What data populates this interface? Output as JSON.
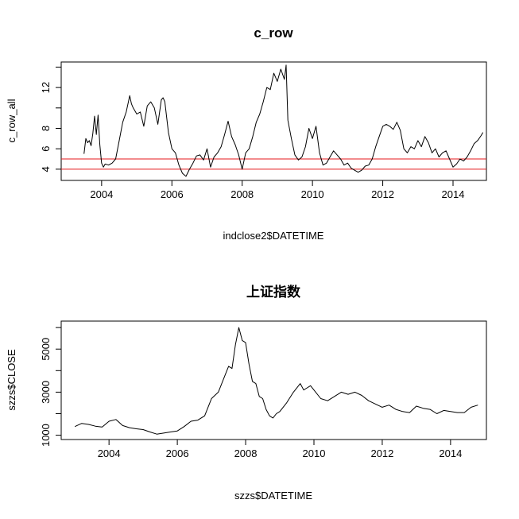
{
  "chart_data": [
    {
      "type": "line",
      "title": "c_row",
      "xlabel": "indclose2$DATETIME",
      "ylabel": "c_row_all",
      "xlim": [
        2002.85,
        2014.95
      ],
      "ylim": [
        2.9,
        14.5
      ],
      "x_ticks": [
        2004,
        2006,
        2008,
        2010,
        2012,
        2014
      ],
      "x_tick_labels": [
        "2004",
        "2006",
        "2008",
        "2010",
        "2012",
        "2014"
      ],
      "y_ticks": [
        4,
        6,
        8,
        10,
        12,
        14
      ],
      "y_tick_labels": [
        "4",
        "6",
        "8",
        "",
        "12",
        ""
      ],
      "hlines": [
        {
          "y": 4.0,
          "color": "#e41a1c"
        },
        {
          "y": 5.0,
          "color": "#e41a1c"
        }
      ],
      "series": [
        {
          "x": [
            2003.5,
            2003.55,
            2003.6,
            2003.65,
            2003.7,
            2003.75,
            2003.8,
            2003.85,
            2003.9,
            2003.95,
            2004.0,
            2004.05,
            2004.1,
            2004.2,
            2004.3,
            2004.4,
            2004.5,
            2004.6,
            2004.7,
            2004.8,
            2004.85,
            2004.9,
            2005.0,
            2005.1,
            2005.2,
            2005.3,
            2005.4,
            2005.5,
            2005.6,
            2005.7,
            2005.75,
            2005.8,
            2005.9,
            2006.0,
            2006.1,
            2006.2,
            2006.3,
            2006.4,
            2006.5,
            2006.6,
            2006.7,
            2006.8,
            2006.9,
            2007.0,
            2007.1,
            2007.2,
            2007.3,
            2007.4,
            2007.5,
            2007.6,
            2007.7,
            2007.8,
            2007.9,
            2008.0,
            2008.1,
            2008.2,
            2008.3,
            2008.4,
            2008.5,
            2008.6,
            2008.7,
            2008.8,
            2008.9,
            2009.0,
            2009.1,
            2009.2,
            2009.25,
            2009.3,
            2009.4,
            2009.5,
            2009.6,
            2009.7,
            2009.8,
            2009.9,
            2010.0,
            2010.1,
            2010.2,
            2010.3,
            2010.4,
            2010.5,
            2010.6,
            2010.7,
            2010.8,
            2010.9,
            2011.0,
            2011.1,
            2011.2,
            2011.3,
            2011.4,
            2011.5,
            2011.6,
            2011.7,
            2011.8,
            2011.9,
            2012.0,
            2012.1,
            2012.2,
            2012.3,
            2012.4,
            2012.5,
            2012.6,
            2012.7,
            2012.8,
            2012.9,
            2013.0,
            2013.1,
            2013.2,
            2013.3,
            2013.4,
            2013.5,
            2013.6,
            2013.7,
            2013.8,
            2013.9,
            2014.0,
            2014.1,
            2014.2,
            2014.3,
            2014.4,
            2014.5,
            2014.6,
            2014.7,
            2014.8,
            2014.85
          ],
          "values": [
            5.5,
            7.0,
            6.6,
            6.8,
            6.3,
            7.5,
            9.2,
            7.4,
            9.3,
            6.4,
            4.6,
            4.2,
            4.5,
            4.4,
            4.6,
            5.0,
            6.8,
            8.6,
            9.6,
            11.2,
            10.4,
            10.0,
            9.4,
            9.6,
            8.2,
            10.2,
            10.6,
            10.0,
            8.4,
            10.8,
            11.0,
            10.6,
            7.6,
            6.0,
            5.6,
            4.4,
            3.6,
            3.3,
            4.0,
            4.6,
            5.3,
            5.4,
            4.9,
            6.0,
            4.2,
            5.2,
            5.6,
            6.2,
            7.4,
            8.7,
            7.2,
            6.4,
            5.4,
            4.0,
            5.6,
            6.0,
            7.2,
            8.6,
            9.4,
            10.6,
            12.0,
            11.8,
            13.4,
            12.6,
            13.8,
            12.8,
            14.2,
            8.8,
            7.0,
            5.4,
            4.9,
            5.2,
            6.2,
            8.0,
            7.0,
            8.2,
            5.6,
            4.4,
            4.6,
            5.2,
            5.8,
            5.4,
            5.0,
            4.4,
            4.6,
            4.1,
            3.9,
            3.7,
            3.9,
            4.3,
            4.4,
            5.0,
            6.2,
            7.2,
            8.2,
            8.4,
            8.2,
            7.9,
            8.6,
            7.8,
            6.0,
            5.6,
            6.2,
            6.0,
            6.8,
            6.2,
            7.2,
            6.6,
            5.6,
            6.0,
            5.2,
            5.6,
            5.8,
            5.0,
            4.2,
            4.5,
            5.0,
            4.8,
            5.2,
            5.8,
            6.5,
            6.8,
            7.3,
            7.6
          ]
        }
      ]
    },
    {
      "type": "line",
      "title": "上证指数",
      "xlabel": "szzs$DATETIME",
      "ylabel": "szzs$CLOSE",
      "xlim": [
        2002.6,
        2015.05
      ],
      "ylim": [
        800,
        6300
      ],
      "x_ticks": [
        2004,
        2006,
        2008,
        2010,
        2012,
        2014
      ],
      "x_tick_labels": [
        "2004",
        "2006",
        "2008",
        "2010",
        "2012",
        "2014"
      ],
      "y_ticks": [
        1000,
        2000,
        3000,
        4000,
        5000,
        6000
      ],
      "y_tick_labels": [
        "1000",
        "",
        "3000",
        "",
        "5000",
        ""
      ],
      "series": [
        {
          "x": [
            2003.0,
            2003.2,
            2003.4,
            2003.6,
            2003.8,
            2004.0,
            2004.2,
            2004.4,
            2004.6,
            2004.8,
            2005.0,
            2005.2,
            2005.4,
            2005.6,
            2005.8,
            2006.0,
            2006.2,
            2006.4,
            2006.6,
            2006.8,
            2007.0,
            2007.2,
            2007.4,
            2007.5,
            2007.6,
            2007.7,
            2007.8,
            2007.9,
            2008.0,
            2008.1,
            2008.2,
            2008.3,
            2008.4,
            2008.5,
            2008.6,
            2008.7,
            2008.8,
            2008.9,
            2009.0,
            2009.2,
            2009.4,
            2009.6,
            2009.7,
            2009.8,
            2009.9,
            2010.0,
            2010.2,
            2010.4,
            2010.6,
            2010.8,
            2011.0,
            2011.2,
            2011.4,
            2011.6,
            2011.8,
            2012.0,
            2012.2,
            2012.4,
            2012.6,
            2012.8,
            2013.0,
            2013.2,
            2013.4,
            2013.6,
            2013.8,
            2014.0,
            2014.2,
            2014.4,
            2014.6,
            2014.8
          ],
          "values": [
            1400,
            1550,
            1500,
            1420,
            1380,
            1650,
            1730,
            1450,
            1350,
            1300,
            1260,
            1150,
            1050,
            1100,
            1150,
            1200,
            1400,
            1650,
            1700,
            1900,
            2700,
            3000,
            3800,
            4200,
            4100,
            5200,
            6000,
            5400,
            5300,
            4300,
            3500,
            3400,
            2800,
            2700,
            2200,
            1900,
            1800,
            2000,
            2100,
            2500,
            3000,
            3400,
            3100,
            3200,
            3300,
            3100,
            2700,
            2600,
            2800,
            3000,
            2900,
            3000,
            2850,
            2600,
            2450,
            2300,
            2400,
            2200,
            2100,
            2050,
            2350,
            2250,
            2200,
            2000,
            2150,
            2100,
            2050,
            2050,
            2300,
            2400
          ]
        }
      ]
    }
  ]
}
